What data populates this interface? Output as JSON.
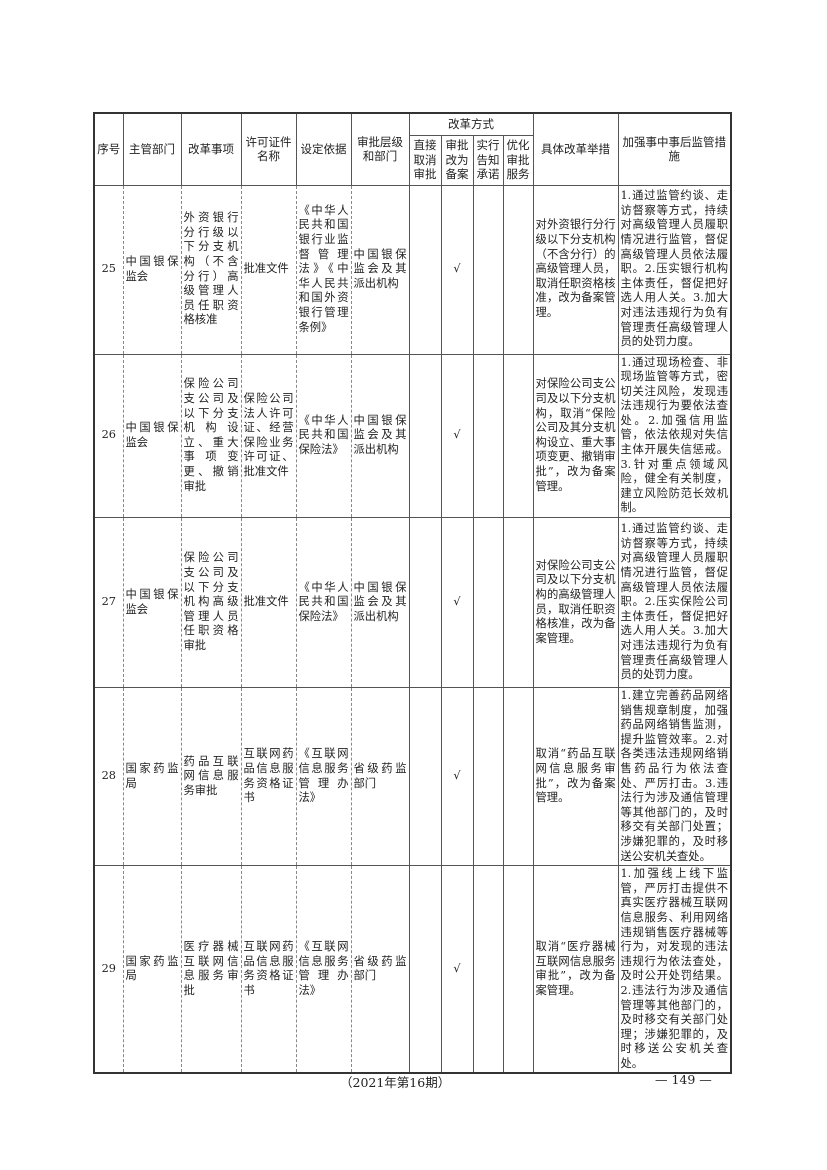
{
  "table": {
    "headers": {
      "seq": "序号",
      "department": "主管部门",
      "item": "改革事项",
      "license": "许可证件名称",
      "basis": "设定依据",
      "level": "审批层级和部门",
      "method_group": "改革方式",
      "methods": [
        "直接取消审批",
        "审批改为备案",
        "实行告知承诺",
        "优化审批服务"
      ],
      "measures": "具体改革举措",
      "supervision": "加强事中事后监管措施"
    },
    "rows": [
      {
        "seq": "25",
        "department": "中国银保监会",
        "item": "外资银行分行级以下分支机构（不含分行）高级管理人员任职资格核准",
        "license": "批准文件",
        "basis": "《中华人民共和国银行业监督管理法》《中华人民共和国外资银行管理条例》",
        "level": "中国银保监会及其派出机构",
        "checks": [
          "",
          "√",
          "",
          ""
        ],
        "measures": "对外资银行分行级以下分支机构（不含分行）的高级管理人员，取消任职资格核准，改为备案管理。",
        "supervision": "1.通过监管约谈、走访督察等方式，持续对高级管理人员履职情况进行监管，督促高级管理人员依法履职。2.压实银行机构主体责任，督促把好选人用人关。3.加大对违法违规行为负有管理责任高级管理人员的处罚力度。"
      },
      {
        "seq": "26",
        "department": "中国银保监会",
        "item": "保险公司支公司及以下分支机构设立、重大事项变更、撤销审批",
        "license": "保险公司法人许可证、经营保险业务许可证、批准文件",
        "basis": "《中华人民共和国保险法》",
        "level": "中国银保监会及其派出机构",
        "checks": [
          "",
          "√",
          "",
          ""
        ],
        "measures": "对保险公司支公司及以下分支机构，取消“保险公司及其分支机构设立、重大事项变更、撤销审批”，改为备案管理。",
        "supervision": "1.通过现场检查、非现场监管等方式，密切关注风险，发现违法违规行为要依法查处。2.加强信用监管，依法依规对失信主体开展失信惩戒。3.针对重点领域风险，健全有关制度，建立风险防范长效机制。"
      },
      {
        "seq": "27",
        "department": "中国银保监会",
        "item": "保险公司支公司及以下分支机构高级管理人员任职资格审批",
        "license": "批准文件",
        "basis": "《中华人民共和国保险法》",
        "level": "中国银保监会及其派出机构",
        "checks": [
          "",
          "√",
          "",
          ""
        ],
        "measures": "对保险公司支公司及以下分支机构的高级管理人员，取消任职资格核准，改为备案管理。",
        "supervision": "1.通过监管约谈、走访督察等方式，持续对高级管理人员履职情况进行监管，督促高级管理人员依法履职。2.压实保险公司主体责任，督促把好选人用人关。3.加大对违法违规行为负有管理责任高级管理人员的处罚力度。"
      },
      {
        "seq": "28",
        "department": "国家药监局",
        "item": "药品互联网信息服务审批",
        "license": "互联网药品信息服务资格证书",
        "basis": "《互联网信息服务管理办法》",
        "level": "省级药监部门",
        "checks": [
          "",
          "√",
          "",
          ""
        ],
        "measures": "取消“药品互联网信息服务审批”，改为备案管理。",
        "supervision": "1.建立完善药品网络销售规章制度，加强药品网络销售监测，提升监管效率。2.对各类违法违规网络销售药品行为依法查处、严厉打击。3.违法行为涉及通信管理等其他部门的，及时移交有关部门处置；涉嫌犯罪的，及时移送公安机关查处。"
      },
      {
        "seq": "29",
        "department": "国家药监局",
        "item": "医疗器械互联网信息服务审批",
        "license": "互联网药品信息服务资格证书",
        "basis": "《互联网信息服务管理办法》",
        "level": "省级药监部门",
        "checks": [
          "",
          "√",
          "",
          ""
        ],
        "measures": "取消“医疗器械互联网信息服务审批”，改为备案管理。",
        "supervision": "1.加强线上线下监管，严厉打击提供不真实医疗器械互联网信息服务、利用网络违规销售医疗器械等行为，对发现的违法违规行为依法查处，及时公开处罚结果。2.违法行为涉及通信管理等其他部门的，及时移交有关部门处理；涉嫌犯罪的，及时移送公安机关查处。"
      }
    ]
  },
  "footer": {
    "issue": "（2021年第16期）",
    "page": "— 149 —"
  }
}
